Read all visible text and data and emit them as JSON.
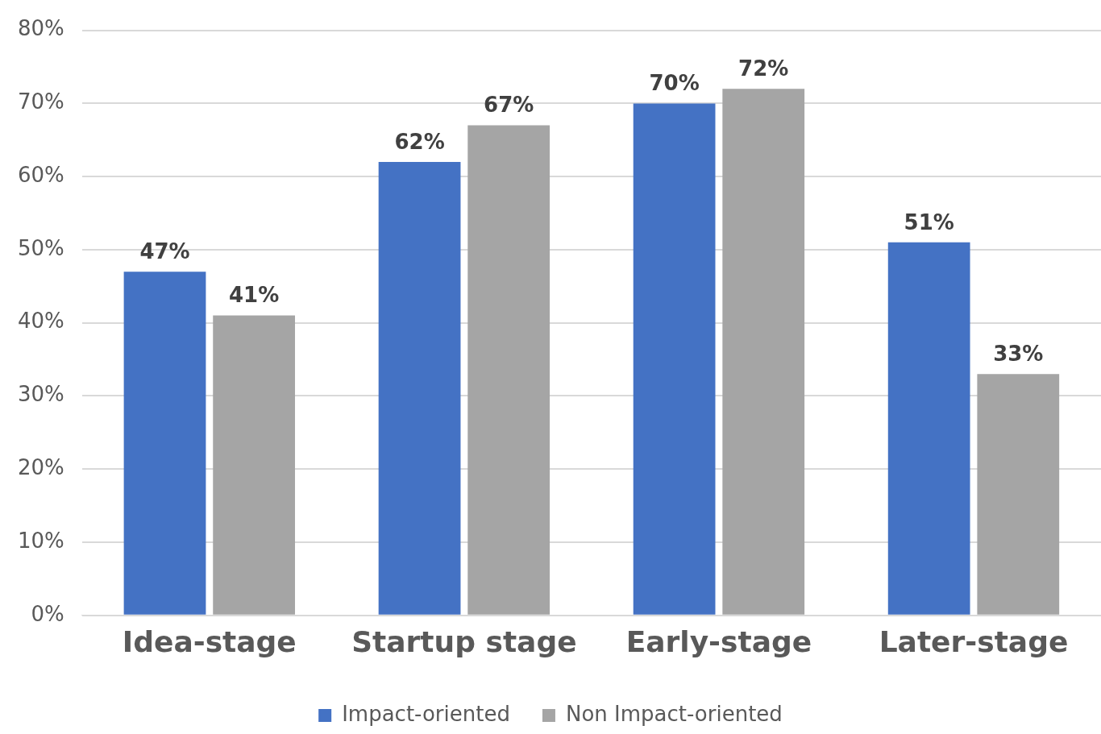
{
  "chart_data": {
    "type": "bar",
    "categories": [
      "Idea-stage",
      "Startup stage",
      "Early-stage",
      "Later-stage"
    ],
    "series": [
      {
        "name": "Impact-oriented",
        "color": "#4472c4",
        "values": [
          47,
          62,
          70,
          51
        ],
        "value_labels": [
          "47%",
          "62%",
          "70%",
          "51%"
        ]
      },
      {
        "name": "Non Impact-oriented",
        "color": "#a5a5a5",
        "values": [
          41,
          67,
          72,
          33
        ],
        "value_labels": [
          "41%",
          "67%",
          "72%",
          "33%"
        ]
      }
    ],
    "ylim": [
      0,
      80
    ],
    "yticks": [
      {
        "value": 0,
        "label": "0%"
      },
      {
        "value": 10,
        "label": "10%"
      },
      {
        "value": 20,
        "label": "20%"
      },
      {
        "value": 30,
        "label": "30%"
      },
      {
        "value": 40,
        "label": "40%"
      },
      {
        "value": 50,
        "label": "50%"
      },
      {
        "value": 60,
        "label": "60%"
      },
      {
        "value": 70,
        "label": "70%"
      },
      {
        "value": 80,
        "label": "80%"
      }
    ],
    "grid": "y",
    "legend": "bottom"
  }
}
